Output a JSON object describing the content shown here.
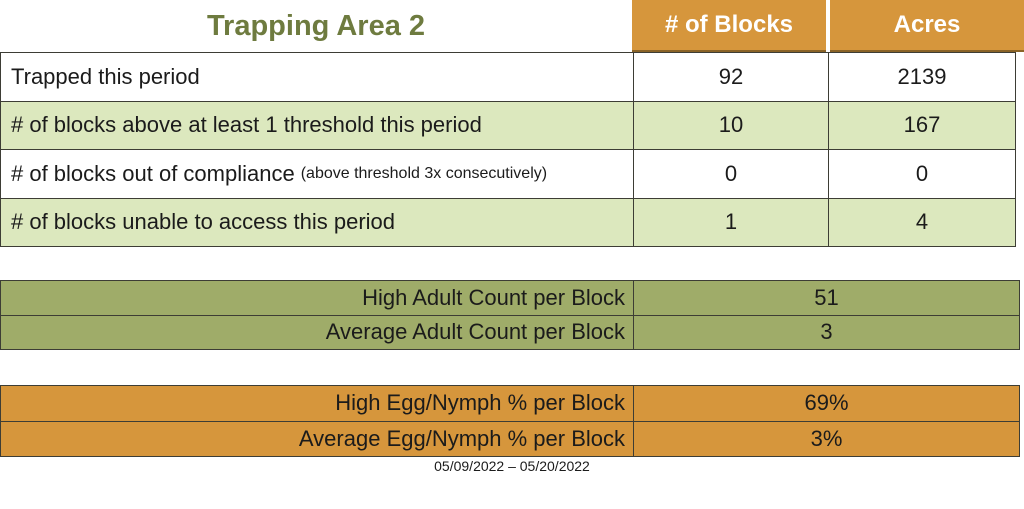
{
  "title": "Trapping Area 2",
  "colors": {
    "orange": "#D6963C",
    "light_green": "#DCE8BE",
    "olive": "#9FAC69",
    "title_green": "#6E7B3F",
    "border": "#3D3D35"
  },
  "main_table": {
    "columns": [
      "# of Blocks",
      "Acres"
    ],
    "rows": [
      {
        "label": "Trapped this period",
        "note": "",
        "blocks": "92",
        "acres": "2139"
      },
      {
        "label": "# of blocks above at least 1 threshold this period",
        "note": "",
        "blocks": "10",
        "acres": "167"
      },
      {
        "label": "# of blocks out of compliance",
        "note": "(above threshold 3x consecutively)",
        "blocks": "0",
        "acres": "0"
      },
      {
        "label": "# of blocks unable to access this period",
        "note": "",
        "blocks": "1",
        "acres": "4"
      }
    ]
  },
  "adult_table": {
    "rows": [
      {
        "label": "High Adult Count per Block",
        "value": "51"
      },
      {
        "label": "Average Adult Count per Block",
        "value": "3"
      }
    ]
  },
  "egg_table": {
    "rows": [
      {
        "label": "High Egg/Nymph % per Block",
        "value": "69%"
      },
      {
        "label": "Average Egg/Nymph % per Block",
        "value": "3%"
      }
    ]
  },
  "date_range": "05/09/2022 – 05/20/2022"
}
